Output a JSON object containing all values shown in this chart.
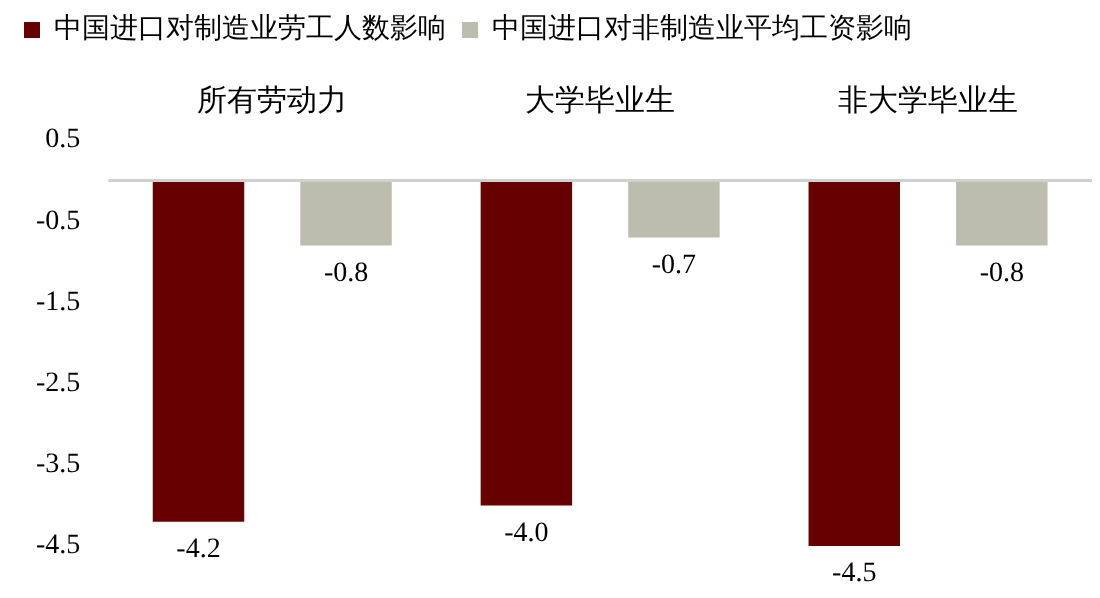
{
  "chart_data": {
    "type": "bar",
    "categories": [
      "所有劳动力",
      "大学毕业生",
      "非大学毕业生"
    ],
    "series": [
      {
        "name": "中国进口对制造业劳工人数影响",
        "color": "#660000",
        "values": [
          -4.2,
          -4.0,
          -4.5
        ],
        "value_labels": [
          "-4.2",
          "-4.0",
          "-4.5"
        ]
      },
      {
        "name": "中国进口对非制造业平均工资影响",
        "color": "#bdbdad",
        "values": [
          -0.8,
          -0.7,
          -0.8
        ],
        "value_labels": [
          "-0.8",
          "-0.7",
          "-0.8"
        ]
      }
    ],
    "ylim": [
      -4.5,
      0.5
    ],
    "yticks": [
      0.5,
      -0.5,
      -1.5,
      -2.5,
      -3.5,
      -4.5
    ],
    "grid": false,
    "legend": "top left"
  }
}
